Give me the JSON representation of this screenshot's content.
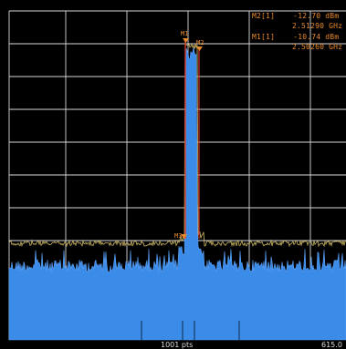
{
  "analyzer": {
    "points_label": "1001 pts",
    "stop_freq_partial": "615.0"
  },
  "markers": [
    {
      "id": "M2[1]",
      "level": "-12.70 dBm",
      "freq": "2.51290 GHz",
      "tag": "M2"
    },
    {
      "id": "M1[1]",
      "level": "-10.74 dBm",
      "freq": "2.50260 GHz",
      "tag": "M1"
    },
    {
      "tag": "M3"
    }
  ],
  "colors": {
    "background": "#000000",
    "grid": "#d8d8d8",
    "trace_blue": "#3b8be8",
    "trace_yellow": "#d9c36a",
    "marker_orange": "#e88a2c",
    "marker_red": "#d23a2a"
  },
  "icons": {
    "marker_triangle": "down-triangle-icon"
  }
}
